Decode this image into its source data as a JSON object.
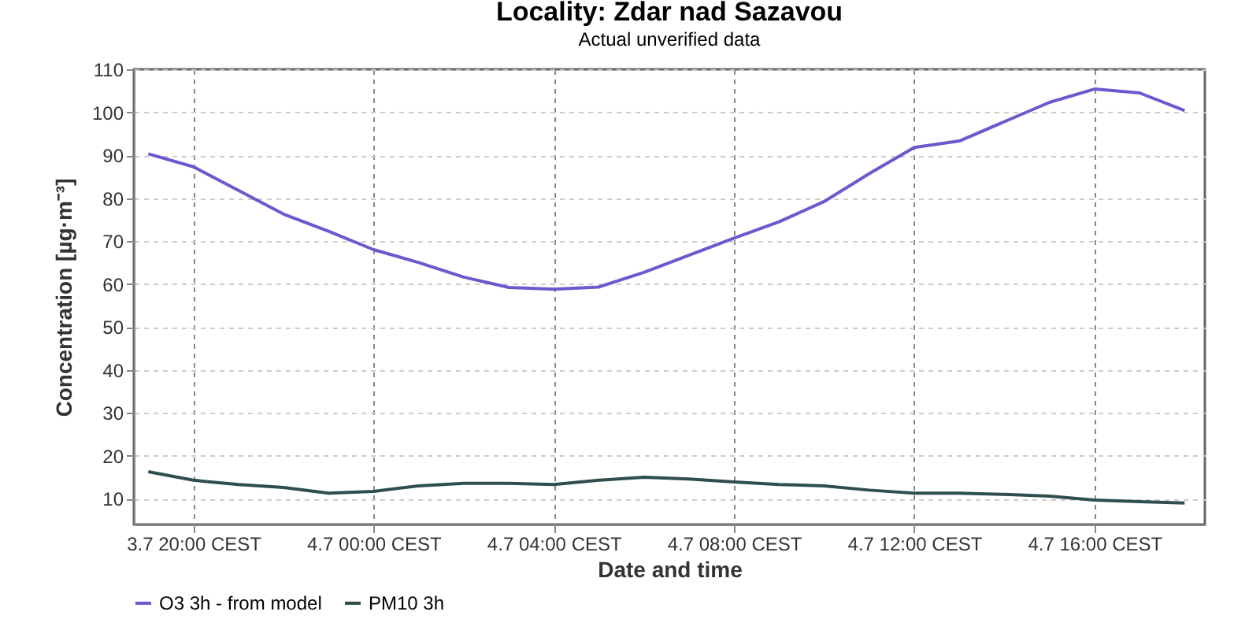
{
  "chart_data": {
    "type": "line",
    "title": "Locality: Zdar nad Sazavou",
    "subtitle": "Actual unverified data",
    "xlabel": "Date and time",
    "ylabel": "Concentration [µg·m⁻³]",
    "categories": [
      null,
      "3.7 20:00 CEST",
      null,
      null,
      null,
      "4.7 00:00 CEST",
      null,
      null,
      null,
      "4.7 04:00 CEST",
      null,
      null,
      null,
      "4.7 08:00 CEST",
      null,
      null,
      null,
      "4.7 12:00 CEST",
      null,
      null,
      null,
      "4.7 16:00 CEST",
      null,
      null
    ],
    "ylim": [
      4,
      110
    ],
    "yticks": [
      10,
      20,
      30,
      40,
      50,
      60,
      70,
      80,
      90,
      100,
      110
    ],
    "series": [
      {
        "name": "O3 3h - from model",
        "color": "#6a5acd",
        "values": [
          90.3,
          87.3,
          81.8,
          76.3,
          72.3,
          68,
          65,
          61.6,
          59.2,
          58.8,
          59.3,
          62.7,
          66.7,
          70.7,
          74.5,
          79.2,
          85.7,
          91.8,
          93.3,
          97.8,
          102.3,
          105.4,
          104.5,
          100.4
        ]
      },
      {
        "name": "PM10 3h",
        "color": "#2f4f4f",
        "values": [
          16.3,
          14.3,
          13.3,
          12.6,
          11.3,
          11.7,
          13,
          13.6,
          13.6,
          13.3,
          14.3,
          15,
          14.6,
          13.9,
          13.3,
          13,
          12,
          11.3,
          11.3,
          11,
          10.6,
          9.7,
          9.3,
          9
        ]
      }
    ],
    "grid": true,
    "legend": "bottom",
    "line_style": "solid",
    "marker": "none"
  }
}
